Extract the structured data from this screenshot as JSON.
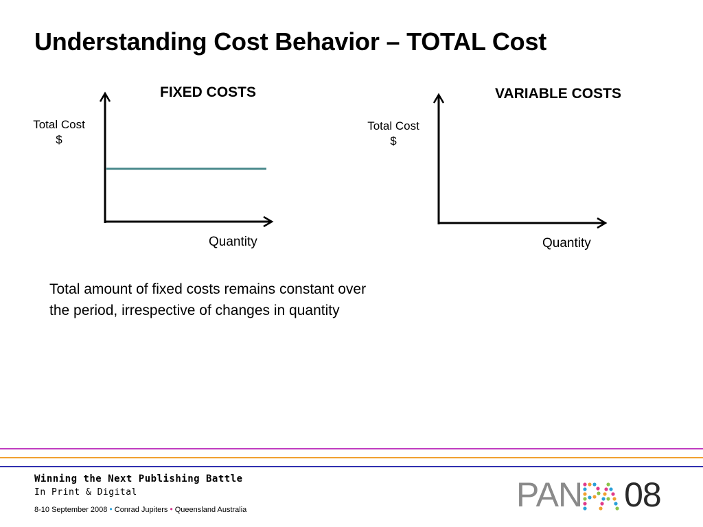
{
  "slide": {
    "title": "Understanding Cost Behavior – TOTAL Cost",
    "description": "Total amount of fixed costs remains constant over the period, irrespective of changes in quantity"
  },
  "fixed_graph": {
    "title": "FIXED COSTS",
    "y_label_line1": "Total Cost",
    "y_label_line2": "$",
    "x_label": "Quantity",
    "line_color": "#4a8a8c"
  },
  "variable_graph": {
    "title": "VARIABLE COSTS",
    "y_label_line1": "Total Cost",
    "y_label_line2": "$",
    "x_label": "Quantity"
  },
  "footer": {
    "tagline_line1": "Winning the Next Publishing Battle",
    "tagline_line2": "In Print & Digital",
    "event_date": "8-10 September 2008",
    "event_venue": "Conrad Jupiters",
    "event_location": "Queensland Australia",
    "separator": "•",
    "logo_part1": "PAN",
    "logo_part2": "PA",
    "logo_part3": "08",
    "line_colors": [
      "#c03cc0",
      "#f0a030",
      "#3030b0"
    ]
  }
}
